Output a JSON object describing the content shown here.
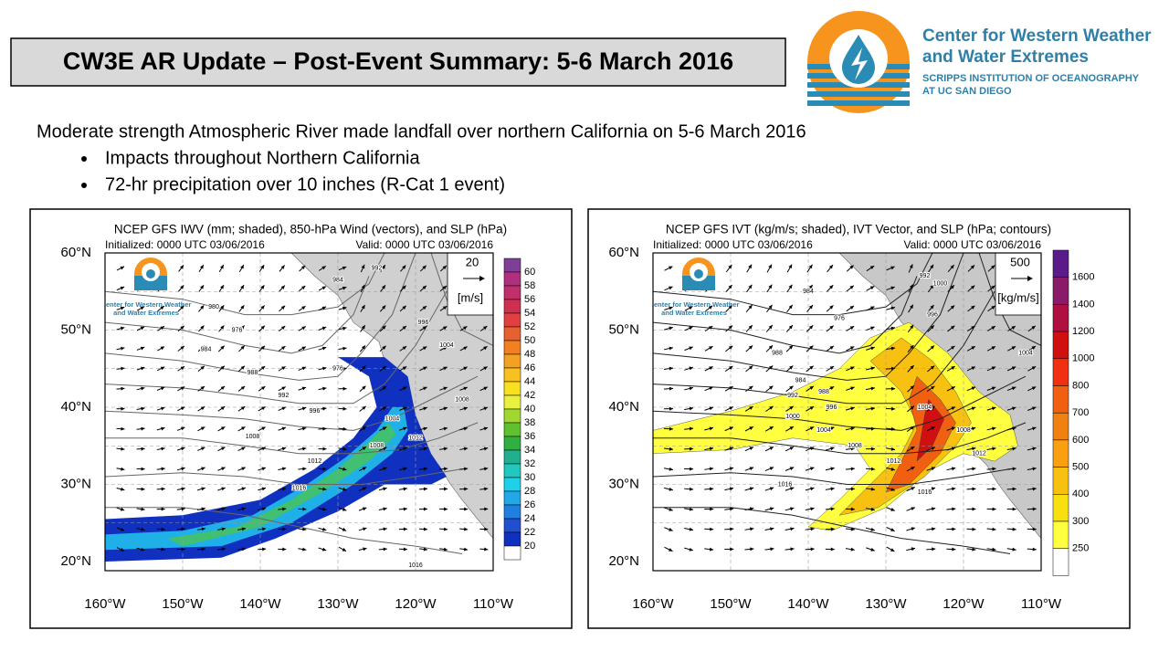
{
  "header": {
    "title": "CW3E AR Update – Post-Event Summary: 5-6 March 2016"
  },
  "logo": {
    "name_line1": "Center for Western Weather",
    "name_line2": "and Water Extremes",
    "org_line1": "SCRIPPS INSTITUTION OF OCEANOGRAPHY",
    "org_line2": "AT UC SAN DIEGO"
  },
  "summary": {
    "lead": "Moderate strength Atmospheric River made landfall over northern California on 5-6 March 2016",
    "bullets": [
      "Impacts throughout Northern California",
      "72-hr precipitation over 10 inches (R-Cat 1 event)"
    ]
  },
  "maps": [
    {
      "title": "NCEP GFS IWV (mm; shaded), 850-hPa Wind (vectors), and SLP (hPa)",
      "initialized": "Initialized: 0000 UTC 03/06/2016",
      "valid": "Valid: 0000 UTC 03/06/2016",
      "vector_scale": "20",
      "vector_unit": "[m/s]",
      "logo_text": [
        "Center for Western Weather",
        "and Water Extremes"
      ],
      "lat_labels": [
        "60°N",
        "50°N",
        "40°N",
        "30°N",
        "20°N"
      ],
      "lon_labels": [
        "160°W",
        "150°W",
        "140°W",
        "130°W",
        "120°W",
        "110°W"
      ],
      "colorbar": {
        "levels": [
          60,
          58,
          56,
          54,
          52,
          50,
          48,
          46,
          44,
          42,
          40,
          38,
          36,
          34,
          32,
          30,
          28,
          26,
          24,
          22,
          20
        ],
        "colors": [
          "#7f3f98",
          "#b03080",
          "#c0306a",
          "#d03050",
          "#e04040",
          "#e86030",
          "#f08020",
          "#f4a020",
          "#f8c020",
          "#f8e020",
          "#e8f040",
          "#a0d830",
          "#60c030",
          "#30b040",
          "#20b090",
          "#20c8c0",
          "#20d0e8",
          "#20a8e8",
          "#2080e0",
          "#2050d0",
          "#1030c0",
          "#ffffff"
        ]
      },
      "contour_labels": [
        "980",
        "984",
        "976",
        "984",
        "988",
        "992",
        "996",
        "1008",
        "1012",
        "1016",
        "976",
        "1004",
        "1008",
        "1012",
        "996",
        "1004",
        "992",
        "1008",
        "1016"
      ]
    },
    {
      "title": "NCEP GFS IVT (kg/m/s; shaded), IVT Vector, and SLP (hPa; contours)",
      "initialized": "Initialized: 0000 UTC 03/06/2016",
      "valid": "Valid: 0000 UTC 03/06/2016",
      "vector_scale": "500",
      "vector_unit": "[kg/m/s]",
      "logo_text": [
        "Center for Western Weather",
        "and Water Extremes"
      ],
      "lat_labels": [
        "60°N",
        "50°N",
        "40°N",
        "30°N",
        "20°N"
      ],
      "lon_labels": [
        "160°W",
        "150°W",
        "140°W",
        "130°W",
        "120°W",
        "110°W"
      ],
      "colorbar": {
        "levels": [
          1600,
          1400,
          1200,
          1000,
          800,
          700,
          600,
          500,
          400,
          300,
          250
        ],
        "colors": [
          "#5a1a8a",
          "#8a1a6a",
          "#b01040",
          "#d01010",
          "#f03010",
          "#f06010",
          "#f08010",
          "#f8a010",
          "#f8c010",
          "#f8e010",
          "#ffff40",
          "#ffffff"
        ]
      },
      "contour_labels": [
        "984",
        "976",
        "988",
        "984",
        "988",
        "992",
        "996",
        "1000",
        "1004",
        "1008",
        "1012",
        "1016",
        "992",
        "1000",
        "996",
        "1004",
        "1008",
        "1012",
        "1016",
        "1004"
      ]
    }
  ]
}
